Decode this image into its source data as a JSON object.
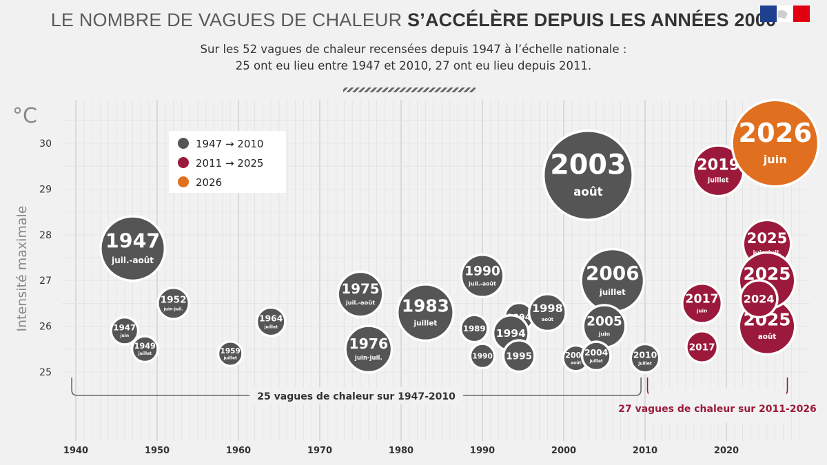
{
  "header": {
    "title_light": "Le nombre de vagues de chaleur",
    "title_bold": "s’accélère depuis les années 2000",
    "subtitle_line1": "Sur les 52 vagues de chaleur recensées depuis 1947 à l’échelle nationale :",
    "subtitle_line2": "25 ont eu lieu entre 1947 et 2010, 27 ont eu lieu depuis 2011."
  },
  "chart_data": {
    "type": "scatter",
    "unit_label": "°C",
    "ylabel": "Intensité maximale",
    "xlim": [
      1938,
      2029
    ],
    "ylim": [
      24.8,
      30.8
    ],
    "xticks": [
      1940,
      1950,
      1960,
      1970,
      1980,
      1990,
      2000,
      2010,
      2020
    ],
    "yticks": [
      25,
      26,
      27,
      28,
      29,
      30
    ],
    "legend": [
      {
        "label": "1947 → 2010",
        "color": "#555555"
      },
      {
        "label": "2011 → 2025",
        "color": "#9b1a3b"
      },
      {
        "label": "2026",
        "color": "#e0701f"
      }
    ],
    "brackets": [
      {
        "label": "25 vagues de chaleur sur 1947-2010",
        "from": 1939.5,
        "to": 2009.5,
        "color": "#666666"
      },
      {
        "label": "27 vagues de chaleur sur 2011-2026",
        "from": 2010.3,
        "to": 2027.5,
        "color": "#9b1a3b"
      }
    ],
    "points": [
      {
        "x": 1947,
        "y": 27.7,
        "r": 46,
        "g": 0,
        "year": "1947",
        "month": "juil.-août"
      },
      {
        "x": 1946,
        "y": 25.9,
        "r": 19,
        "g": 0,
        "year": "1947",
        "month": "juin"
      },
      {
        "x": 1948.5,
        "y": 25.5,
        "r": 18,
        "g": 0,
        "year": "1949",
        "month": "juillet"
      },
      {
        "x": 1952,
        "y": 26.5,
        "r": 22,
        "g": 0,
        "year": "1952",
        "month": "juin-juil."
      },
      {
        "x": 1959,
        "y": 25.4,
        "r": 17,
        "g": 0,
        "year": "1959",
        "month": "juillet"
      },
      {
        "x": 1964,
        "y": 26.1,
        "r": 20,
        "g": 0,
        "year": "1964",
        "month": "juillet"
      },
      {
        "x": 1975,
        "y": 26.7,
        "r": 32,
        "g": 0,
        "year": "1975",
        "month": "juil.-août"
      },
      {
        "x": 1976,
        "y": 25.5,
        "r": 33,
        "g": 0,
        "year": "1976",
        "month": "juin-juil."
      },
      {
        "x": 1983,
        "y": 26.3,
        "r": 40,
        "g": 0,
        "year": "1983",
        "month": "juillet"
      },
      {
        "x": 1990,
        "y": 27.1,
        "r": 30,
        "g": 0,
        "year": "1990",
        "month": "juil.-août"
      },
      {
        "x": 1989,
        "y": 25.95,
        "r": 19,
        "g": 0,
        "year": "1989",
        "month": ""
      },
      {
        "x": 1990,
        "y": 25.35,
        "r": 17,
        "g": 0,
        "year": "1990",
        "month": ""
      },
      {
        "x": 1994.5,
        "y": 26.2,
        "r": 20,
        "g": 0,
        "year": "1994",
        "month": ""
      },
      {
        "x": 1993.5,
        "y": 25.85,
        "r": 25,
        "g": 0,
        "year": "1994",
        "month": ""
      },
      {
        "x": 1994.5,
        "y": 25.35,
        "r": 22,
        "g": 0,
        "year": "1995",
        "month": ""
      },
      {
        "x": 1998,
        "y": 26.3,
        "r": 26,
        "g": 0,
        "year": "1998",
        "month": "août"
      },
      {
        "x": 2003,
        "y": 29.3,
        "r": 64,
        "g": 0,
        "year": "2003",
        "month": "août"
      },
      {
        "x": 2006,
        "y": 27.0,
        "r": 45,
        "g": 0,
        "year": "2006",
        "month": "juillet"
      },
      {
        "x": 2005,
        "y": 26.0,
        "r": 30,
        "g": 0,
        "year": "2005",
        "month": "juin"
      },
      {
        "x": 2001.5,
        "y": 25.3,
        "r": 18,
        "g": 0,
        "year": "2001",
        "month": "août"
      },
      {
        "x": 2004,
        "y": 25.35,
        "r": 20,
        "g": 0,
        "year": "2004",
        "month": "juillet"
      },
      {
        "x": 2010,
        "y": 25.3,
        "r": 20,
        "g": 0,
        "year": "2010",
        "month": "juillet"
      },
      {
        "x": 2019,
        "y": 29.4,
        "r": 36,
        "g": 1,
        "year": "2019",
        "month": "juillet"
      },
      {
        "x": 2025,
        "y": 27.8,
        "r": 34,
        "g": 1,
        "year": "2025",
        "month": "juin-juil."
      },
      {
        "x": 2025,
        "y": 26.0,
        "r": 40,
        "g": 1,
        "year": "2025",
        "month": "août"
      },
      {
        "x": 2025,
        "y": 27.0,
        "r": 40,
        "g": 1,
        "year": "2025",
        "month": "août"
      },
      {
        "x": 2024,
        "y": 26.6,
        "r": 26,
        "g": 1,
        "year": "2024",
        "month": ""
      },
      {
        "x": 2017,
        "y": 26.5,
        "r": 28,
        "g": 1,
        "year": "2017",
        "month": "juin"
      },
      {
        "x": 2017,
        "y": 25.55,
        "r": 22,
        "g": 1,
        "year": "2017",
        "month": ""
      },
      {
        "x": 2026,
        "y": 30.0,
        "r": 62,
        "g": 2,
        "year": "2026",
        "month": "juin"
      }
    ]
  }
}
